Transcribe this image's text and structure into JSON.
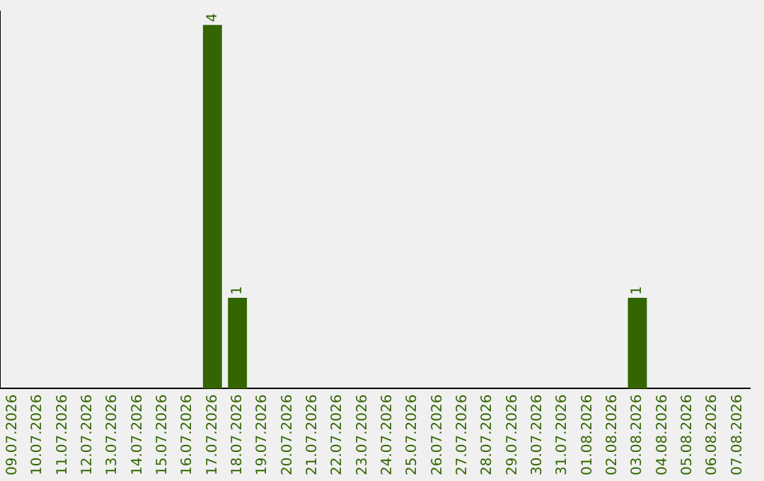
{
  "chart_data": {
    "type": "bar",
    "categories": [
      "09.07.2026",
      "10.07.2026",
      "11.07.2026",
      "12.07.2026",
      "13.07.2026",
      "14.07.2026",
      "15.07.2026",
      "16.07.2026",
      "17.07.2026",
      "18.07.2026",
      "19.07.2026",
      "20.07.2026",
      "21.07.2026",
      "22.07.2026",
      "23.07.2026",
      "24.07.2026",
      "25.07.2026",
      "26.07.2026",
      "27.07.2026",
      "28.07.2026",
      "29.07.2026",
      "30.07.2026",
      "31.07.2026",
      "01.08.2026",
      "02.08.2026",
      "03.08.2026",
      "04.08.2026",
      "05.08.2026",
      "06.08.2026",
      "07.08.2026"
    ],
    "values": [
      0,
      0,
      0,
      0,
      0,
      0,
      0,
      0,
      4,
      1,
      0,
      0,
      0,
      0,
      0,
      0,
      0,
      0,
      0,
      0,
      0,
      0,
      0,
      0,
      0,
      1,
      0,
      0,
      0,
      0
    ],
    "value_labels": [
      null,
      null,
      null,
      null,
      null,
      null,
      null,
      null,
      "4",
      "1",
      null,
      null,
      null,
      null,
      null,
      null,
      null,
      null,
      null,
      null,
      null,
      null,
      null,
      null,
      null,
      "1",
      null,
      null,
      null,
      null
    ],
    "color": "#336600",
    "ylim": [
      0,
      4.15
    ],
    "tick_labels": "x",
    "grid": false,
    "legend": false
  }
}
